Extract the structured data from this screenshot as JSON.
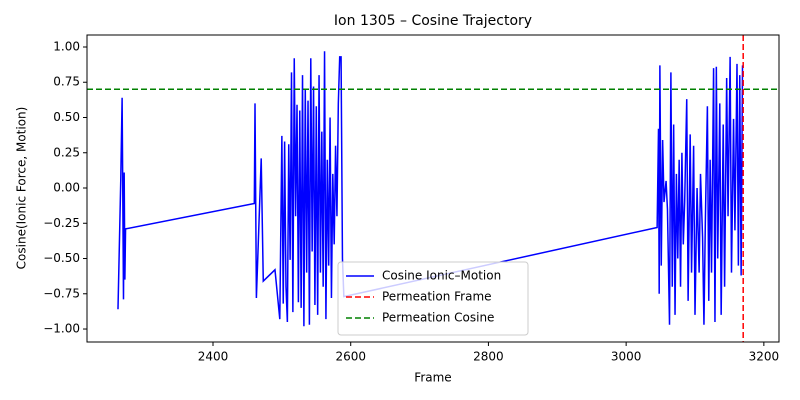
{
  "chart_data": {
    "type": "line",
    "title": "Ion 1305 – Cosine Trajectory",
    "x_label": "Frame",
    "y_label": "Cosine(Ionic Force, Motion)",
    "x": [
      2262,
      2266,
      2268,
      2270,
      2271,
      2272,
      2273,
      2460,
      2461,
      2463,
      2470,
      2473,
      2490,
      2497,
      2500,
      2502,
      2504,
      2506,
      2508,
      2510,
      2512,
      2514,
      2516,
      2518,
      2520,
      2522,
      2524,
      2526,
      2528,
      2530,
      2532,
      2534,
      2536,
      2538,
      2540,
      2542,
      2544,
      2546,
      2548,
      2550,
      2552,
      2554,
      2556,
      2558,
      2560,
      2562,
      2564,
      2566,
      2568,
      2570,
      2572,
      2574,
      2576,
      2578,
      2580,
      2582,
      2584,
      2586,
      2588,
      2590,
      3045,
      3047,
      3048,
      3049,
      3051,
      3053,
      3055,
      3058,
      3060,
      3063,
      3065,
      3067,
      3069,
      3071,
      3073,
      3075,
      3077,
      3079,
      3081,
      3083,
      3085,
      3088,
      3090,
      3093,
      3095,
      3098,
      3100,
      3103,
      3106,
      3108,
      3111,
      3113,
      3115,
      3118,
      3120,
      3122,
      3124,
      3127,
      3129,
      3131,
      3133,
      3136,
      3138,
      3141,
      3143,
      3146,
      3148,
      3151,
      3153,
      3156,
      3158,
      3161,
      3163,
      3165,
      3167,
      3169
    ],
    "series": [
      {
        "name": "Cosine Ionic–Motion",
        "color": "#0000ff",
        "values": [
          -0.86,
          0.05,
          0.64,
          -0.79,
          0.11,
          -0.65,
          -0.29,
          -0.11,
          0.6,
          -0.78,
          0.21,
          -0.66,
          -0.58,
          -0.93,
          0.37,
          -0.82,
          0.33,
          -0.7,
          -0.95,
          0.31,
          -0.51,
          0.82,
          -0.88,
          0.92,
          -0.2,
          0.59,
          -0.81,
          0.55,
          -0.85,
          0.8,
          -0.98,
          0.7,
          -0.6,
          0.62,
          -0.97,
          0.92,
          -0.45,
          0.72,
          -0.83,
          0.58,
          -0.9,
          0.8,
          -0.6,
          0.4,
          -0.7,
          0.97,
          -0.93,
          0.2,
          -0.55,
          0.5,
          -0.78,
          0.1,
          -0.4,
          0.3,
          -0.2,
          0.6,
          0.93,
          0.93,
          -0.5,
          -0.77,
          -0.28,
          0.42,
          -0.75,
          0.87,
          -0.55,
          0.34,
          -0.1,
          0.05,
          -0.15,
          -0.97,
          0.82,
          -0.7,
          0.45,
          -0.9,
          0.1,
          -0.5,
          0.2,
          -0.7,
          0.25,
          -0.4,
          -0.1,
          0.63,
          -0.8,
          0.38,
          -0.6,
          0.3,
          -0.9,
          0.0,
          -0.6,
          0.1,
          -0.35,
          -0.97,
          -0.25,
          0.58,
          -0.8,
          0.2,
          -0.6,
          0.85,
          -0.95,
          0.86,
          -0.5,
          0.6,
          -0.9,
          0.45,
          -0.7,
          0.78,
          -0.2,
          0.93,
          -0.6,
          0.49,
          -0.3,
          0.88,
          -0.55,
          0.8,
          -0.62,
          0.87
        ]
      }
    ],
    "reference_lines": [
      {
        "name": "Permeation Frame",
        "color": "#ff0000",
        "orientation": "vertical",
        "value": 3170
      },
      {
        "name": "Permeation Cosine",
        "color": "#008000",
        "orientation": "horizontal",
        "value": 0.7
      }
    ],
    "xlim": [
      2217,
      3222
    ],
    "ylim": [
      -1.092,
      1.085
    ],
    "xticks": [
      2400,
      2600,
      2800,
      3000,
      3200
    ],
    "yticks": [
      {
        "value": -1,
        "label": "−1.00"
      },
      {
        "value": -0.75,
        "label": "−0.75"
      },
      {
        "value": -0.5,
        "label": "−0.50"
      },
      {
        "value": -0.25,
        "label": "−0.25"
      },
      {
        "value": 0,
        "label": "0.00"
      },
      {
        "value": 0.25,
        "label": "0.25"
      },
      {
        "value": 0.5,
        "label": "0.50"
      },
      {
        "value": 0.75,
        "label": "0.75"
      },
      {
        "value": 1,
        "label": "1.00"
      }
    ],
    "legend_position": "lower center"
  }
}
